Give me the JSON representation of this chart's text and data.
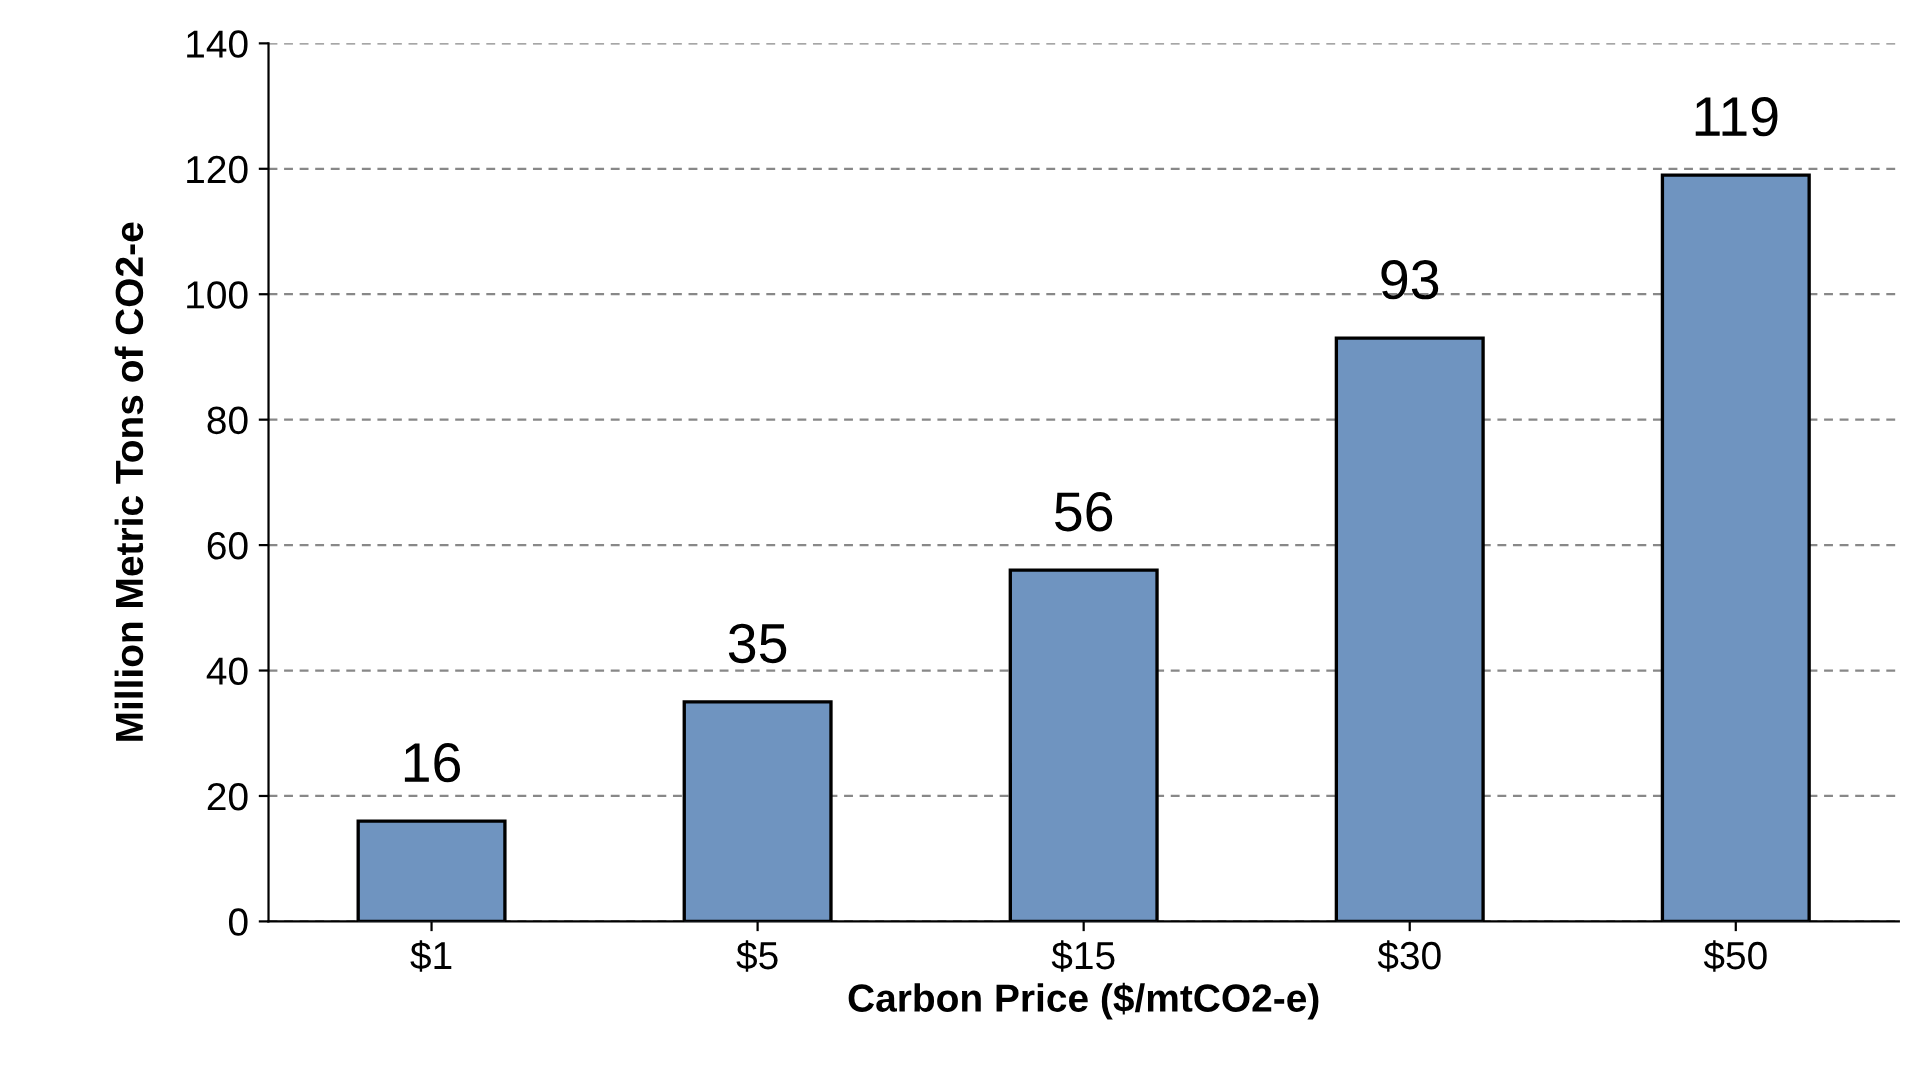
{
  "chart_data": {
    "type": "bar",
    "xlabel": "Carbon Price ($/mtCO2-e)",
    "ylabel": "Million Metric Tons of CO2-e",
    "categories": [
      "$1",
      "$5",
      "$15",
      "$30",
      "$50"
    ],
    "values": [
      16,
      35,
      56,
      93,
      119
    ],
    "color": "#6f94c0",
    "ylim": [
      0,
      140
    ],
    "yticks": [
      0,
      20,
      40,
      60,
      80,
      100,
      120,
      140
    ],
    "grid": "y",
    "data_labels": true
  }
}
